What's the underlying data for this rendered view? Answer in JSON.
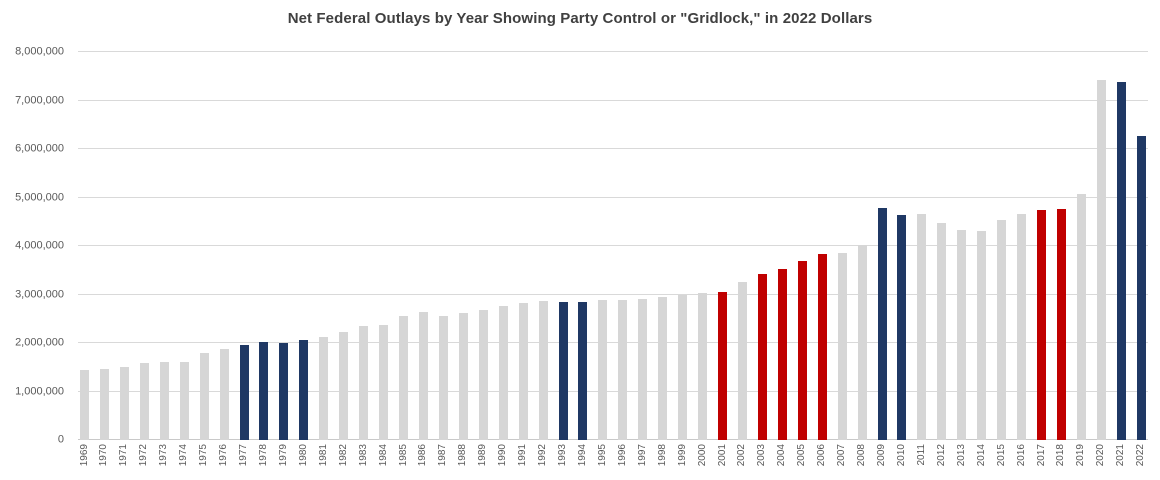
{
  "chart_data": {
    "type": "bar",
    "title": "Net Federal Outlays by Year Showing Party Control or \"Gridlock,\" in 2022 Dollars",
    "xlabel": "",
    "ylabel": "",
    "ylim": [
      0,
      8000000
    ],
    "ytick_interval": 1000000,
    "ytick_labels": [
      "0",
      "1,000,000",
      "2,000,000",
      "3,000,000",
      "4,000,000",
      "5,000,000",
      "6,000,000",
      "7,000,000",
      "8,000,000"
    ],
    "grid": true,
    "legend": "none",
    "colors": {
      "gridlock": "#d6d6d6",
      "democrat": "#1f3864",
      "republican": "#c00000"
    },
    "bars": [
      {
        "year": "1969",
        "value": 1450000,
        "control": "gridlock"
      },
      {
        "year": "1970",
        "value": 1460000,
        "control": "gridlock"
      },
      {
        "year": "1971",
        "value": 1500000,
        "control": "gridlock"
      },
      {
        "year": "1972",
        "value": 1580000,
        "control": "gridlock"
      },
      {
        "year": "1973",
        "value": 1610000,
        "control": "gridlock"
      },
      {
        "year": "1974",
        "value": 1600000,
        "control": "gridlock"
      },
      {
        "year": "1975",
        "value": 1790000,
        "control": "gridlock"
      },
      {
        "year": "1976",
        "value": 1870000,
        "control": "gridlock"
      },
      {
        "year": "1977",
        "value": 1960000,
        "control": "democrat"
      },
      {
        "year": "1978",
        "value": 2030000,
        "control": "democrat"
      },
      {
        "year": "1979",
        "value": 2010000,
        "control": "democrat"
      },
      {
        "year": "1980",
        "value": 2070000,
        "control": "democrat"
      },
      {
        "year": "1981",
        "value": 2120000,
        "control": "gridlock"
      },
      {
        "year": "1982",
        "value": 2230000,
        "control": "gridlock"
      },
      {
        "year": "1983",
        "value": 2350000,
        "control": "gridlock"
      },
      {
        "year": "1984",
        "value": 2380000,
        "control": "gridlock"
      },
      {
        "year": "1985",
        "value": 2550000,
        "control": "gridlock"
      },
      {
        "year": "1986",
        "value": 2630000,
        "control": "gridlock"
      },
      {
        "year": "1987",
        "value": 2550000,
        "control": "gridlock"
      },
      {
        "year": "1988",
        "value": 2620000,
        "control": "gridlock"
      },
      {
        "year": "1989",
        "value": 2690000,
        "control": "gridlock"
      },
      {
        "year": "1990",
        "value": 2770000,
        "control": "gridlock"
      },
      {
        "year": "1991",
        "value": 2820000,
        "control": "gridlock"
      },
      {
        "year": "1992",
        "value": 2860000,
        "control": "gridlock"
      },
      {
        "year": "1993",
        "value": 2840000,
        "control": "democrat"
      },
      {
        "year": "1994",
        "value": 2840000,
        "control": "democrat"
      },
      {
        "year": "1995",
        "value": 2880000,
        "control": "gridlock"
      },
      {
        "year": "1996",
        "value": 2890000,
        "control": "gridlock"
      },
      {
        "year": "1997",
        "value": 2900000,
        "control": "gridlock"
      },
      {
        "year": "1998",
        "value": 2940000,
        "control": "gridlock"
      },
      {
        "year": "1999",
        "value": 2980000,
        "control": "gridlock"
      },
      {
        "year": "2000",
        "value": 3030000,
        "control": "gridlock"
      },
      {
        "year": "2001",
        "value": 3060000,
        "control": "republican"
      },
      {
        "year": "2002",
        "value": 3250000,
        "control": "gridlock"
      },
      {
        "year": "2003",
        "value": 3420000,
        "control": "republican"
      },
      {
        "year": "2004",
        "value": 3530000,
        "control": "republican"
      },
      {
        "year": "2005",
        "value": 3690000,
        "control": "republican"
      },
      {
        "year": "2006",
        "value": 3840000,
        "control": "republican"
      },
      {
        "year": "2007",
        "value": 3850000,
        "control": "gridlock"
      },
      {
        "year": "2008",
        "value": 4020000,
        "control": "gridlock"
      },
      {
        "year": "2009",
        "value": 4780000,
        "control": "democrat"
      },
      {
        "year": "2010",
        "value": 4640000,
        "control": "democrat"
      },
      {
        "year": "2011",
        "value": 4670000,
        "control": "gridlock"
      },
      {
        "year": "2012",
        "value": 4470000,
        "control": "gridlock"
      },
      {
        "year": "2013",
        "value": 4320000,
        "control": "gridlock"
      },
      {
        "year": "2014",
        "value": 4300000,
        "control": "gridlock"
      },
      {
        "year": "2015",
        "value": 4540000,
        "control": "gridlock"
      },
      {
        "year": "2016",
        "value": 4670000,
        "control": "gridlock"
      },
      {
        "year": "2017",
        "value": 4740000,
        "control": "republican"
      },
      {
        "year": "2018",
        "value": 4760000,
        "control": "republican"
      },
      {
        "year": "2019",
        "value": 5080000,
        "control": "gridlock"
      },
      {
        "year": "2020",
        "value": 7420000,
        "control": "gridlock"
      },
      {
        "year": "2021",
        "value": 7380000,
        "control": "democrat"
      },
      {
        "year": "2022",
        "value": 6270000,
        "control": "democrat"
      }
    ]
  }
}
